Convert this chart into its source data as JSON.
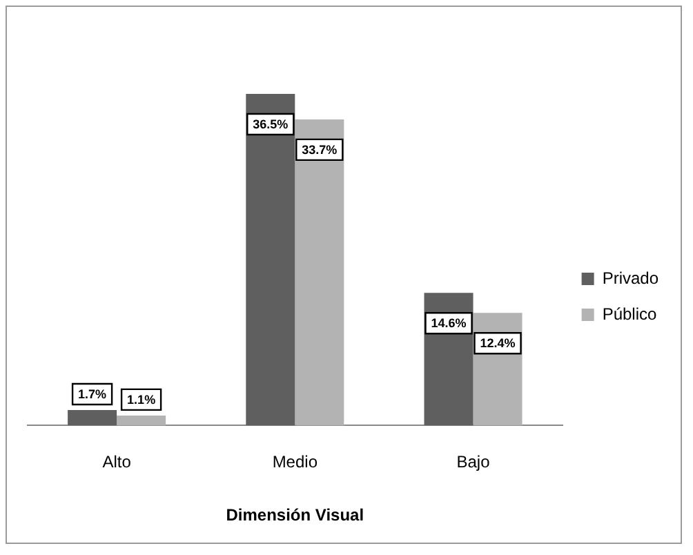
{
  "chart_data": {
    "type": "bar",
    "xlabel": "Dimensión Visual",
    "categories": [
      "Alto",
      "Medio",
      "Bajo"
    ],
    "series": [
      {
        "name": "Privado",
        "color": "#5f5f5f",
        "values": [
          1.7,
          36.5,
          14.6
        ],
        "value_labels": [
          "1.7%",
          "36.5%",
          "14.6%"
        ]
      },
      {
        "name": "Público",
        "color": "#b3b3b3",
        "values": [
          1.1,
          33.7,
          12.4
        ],
        "value_labels": [
          "1.1%",
          "33.7%",
          "12.4%"
        ]
      }
    ],
    "legend": "right",
    "grid": false
  }
}
